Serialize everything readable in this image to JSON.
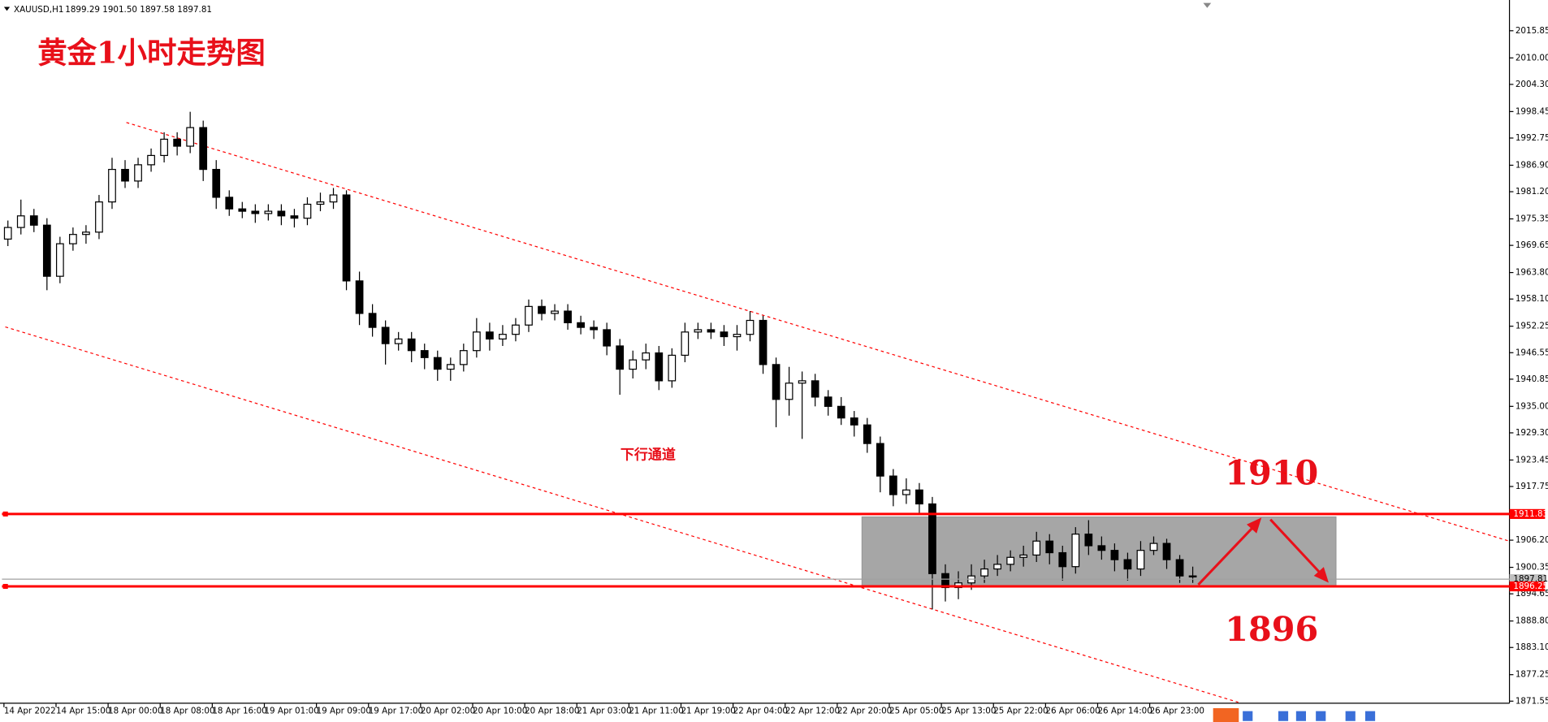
{
  "chart_data": {
    "type": "candlestick",
    "symbol": "XAUUSD,H1",
    "header_ohlc": "1899.29 1901.50 1897.58 1897.81",
    "title": "黄金1小时走势图",
    "annotation": "下行通道",
    "target_high": "1910",
    "target_low": "1896",
    "up_color": "#ffffff",
    "down_color": "#000000",
    "ylim": [
      1871.1,
      2021.4
    ],
    "yticks": [
      2015.85,
      {
        "value": 2010,
        "label": "2010.00"
      },
      {
        "value": 2004.3,
        "label": "2004.30"
      },
      1998.45,
      1992.75,
      {
        "value": 1986.9,
        "label": "1986.90"
      },
      {
        "value": 1981.2,
        "label": "1981.20"
      },
      1975.35,
      1969.65,
      {
        "value": 1963.8,
        "label": "1963.80"
      },
      {
        "value": 1958.1,
        "label": "1958.10"
      },
      1952.25,
      1946.55,
      1940.85,
      {
        "value": 1935,
        "label": "1935.00"
      },
      {
        "value": 1929.3,
        "label": "1929.30"
      },
      1923.45,
      1917.75,
      {
        "value": 1906.2,
        "label": "1906.20"
      },
      1900.35,
      1894.65,
      {
        "value": 1888.8,
        "label": "1888.80"
      },
      {
        "value": 1883.1,
        "label": "1883.10"
      },
      1877.25,
      1871.55
    ],
    "categories": [
      "14 Apr 2022",
      null,
      null,
      null,
      "14 Apr 15:00",
      null,
      null,
      null,
      "18 Apr 00:00",
      null,
      null,
      null,
      "18 Apr 08:00",
      null,
      null,
      null,
      "18 Apr 16:00",
      null,
      null,
      null,
      "19 Apr 01:00",
      null,
      null,
      null,
      "19 Apr 09:00",
      null,
      null,
      null,
      "19 Apr 17:00",
      null,
      null,
      null,
      "20 Apr 02:00",
      null,
      null,
      null,
      "20 Apr 10:00",
      null,
      null,
      null,
      "20 Apr 18:00",
      null,
      null,
      null,
      "21 Apr 03:00",
      null,
      null,
      null,
      "21 Apr 11:00",
      null,
      null,
      null,
      "21 Apr 19:00",
      null,
      null,
      null,
      "22 Apr 04:00",
      null,
      null,
      null,
      "22 Apr 12:00",
      null,
      null,
      null,
      "22 Apr 20:00",
      null,
      null,
      null,
      "25 Apr 05:00",
      null,
      null,
      null,
      "25 Apr 13:00",
      null,
      null,
      null,
      "25 Apr 22:00",
      null,
      null,
      null,
      "26 Apr 06:00",
      null,
      null,
      null,
      "26 Apr 14:00",
      null,
      null,
      null,
      "26 Apr 23:00",
      null,
      null,
      null
    ],
    "candles": [
      [
        1971,
        1975,
        1969.5,
        1973.5
      ],
      [
        1973.5,
        1979.5,
        1972,
        1976
      ],
      [
        1976,
        1977.5,
        1972.5,
        1974
      ],
      [
        1974,
        1975.5,
        1960,
        1963
      ],
      [
        1963,
        1971.5,
        1961.5,
        1970
      ],
      [
        1970,
        1973.5,
        1968.5,
        1972
      ],
      [
        1972,
        1974,
        1970,
        1972.5
      ],
      [
        1972.5,
        1980.5,
        1971,
        1979
      ],
      [
        1979,
        1988.5,
        1977.5,
        1986
      ],
      [
        1986,
        1988,
        1982,
        1983.5
      ],
      [
        1983.5,
        1988.5,
        1982,
        1987
      ],
      [
        1987,
        1990.5,
        1985.5,
        1989
      ],
      [
        1989,
        1994,
        1987.5,
        1992.5
      ],
      [
        1992.5,
        1994,
        1989,
        1991
      ],
      [
        1991,
        1998.4,
        1989.5,
        1995
      ],
      [
        1995,
        1996.5,
        1983.5,
        1986
      ],
      [
        1986,
        1988,
        1977.5,
        1980
      ],
      [
        1980,
        1981.5,
        1976,
        1977.5
      ],
      [
        1977.5,
        1979,
        1975.5,
        1977
      ],
      [
        1977,
        1978.5,
        1974.5,
        1976.5
      ],
      [
        1976.5,
        1978.5,
        1975,
        1977
      ],
      [
        1977,
        1978.5,
        1974,
        1976
      ],
      [
        1976,
        1977.5,
        1973.5,
        1975.5
      ],
      [
        1975.5,
        1980,
        1974,
        1978.5
      ],
      [
        1978.5,
        1981,
        1977,
        1979
      ],
      [
        1979,
        1982,
        1977.5,
        1980.5
      ],
      [
        1980.5,
        1981.5,
        1960,
        1962
      ],
      [
        1962,
        1964,
        1952.5,
        1955
      ],
      [
        1955,
        1957,
        1950,
        1952
      ],
      [
        1952,
        1953.5,
        1944,
        1948.5
      ],
      [
        1948.5,
        1951,
        1947,
        1949.5
      ],
      [
        1949.5,
        1951,
        1944.5,
        1947
      ],
      [
        1947,
        1948.5,
        1943,
        1945.5
      ],
      [
        1945.5,
        1947,
        1940.5,
        1943
      ],
      [
        1943,
        1945.5,
        1940.5,
        1944
      ],
      [
        1944,
        1948.5,
        1942.5,
        1947
      ],
      [
        1947,
        1954,
        1945.5,
        1951
      ],
      [
        1951,
        1953,
        1947,
        1949.5
      ],
      [
        1949.5,
        1952.5,
        1948,
        1950.5
      ],
      [
        1950.5,
        1954,
        1949,
        1952.5
      ],
      [
        1952.5,
        1958,
        1951,
        1956.5
      ],
      [
        1956.5,
        1958,
        1953.5,
        1955
      ],
      [
        1955,
        1957,
        1953.5,
        1955.5
      ],
      [
        1955.5,
        1957,
        1951.5,
        1953
      ],
      [
        1953,
        1954.5,
        1950.5,
        1952
      ],
      [
        1952,
        1953.5,
        1949.5,
        1951.5
      ],
      [
        1951.5,
        1953,
        1946,
        1948
      ],
      [
        1948,
        1949.5,
        1937.5,
        1943
      ],
      [
        1943,
        1947,
        1941,
        1945
      ],
      [
        1945,
        1948.5,
        1943,
        1946.5
      ],
      [
        1946.5,
        1948,
        1938.5,
        1940.5
      ],
      [
        1940.5,
        1947.5,
        1939,
        1946
      ],
      [
        1946,
        1953,
        1944.5,
        1951
      ],
      [
        1951,
        1953,
        1949.5,
        1951.5
      ],
      [
        1951.5,
        1953,
        1949.5,
        1951
      ],
      [
        1951,
        1952.5,
        1948,
        1950
      ],
      [
        1950,
        1952.5,
        1947,
        1950.5
      ],
      [
        1950.5,
        1955.5,
        1949,
        1953.5
      ],
      [
        1953.5,
        1954.5,
        1942,
        1944
      ],
      [
        1944,
        1945.5,
        1930.5,
        1936.5
      ],
      [
        1936.5,
        1943.5,
        1933,
        1940
      ],
      [
        1940,
        1942.5,
        1928,
        1940.5
      ],
      [
        1940.5,
        1942,
        1935,
        1937
      ],
      [
        1937,
        1938.5,
        1933,
        1935
      ],
      [
        1935,
        1937,
        1931,
        1932.5
      ],
      [
        1932.5,
        1934,
        1928.5,
        1931
      ],
      [
        1931,
        1932.5,
        1925,
        1927
      ],
      [
        1927,
        1928.5,
        1916.5,
        1920
      ],
      [
        1920,
        1921.5,
        1913.5,
        1916
      ],
      [
        1916,
        1919.5,
        1914,
        1917
      ],
      [
        1917,
        1918.5,
        1912,
        1914
      ],
      [
        1914,
        1915.5,
        1891.3,
        1899
      ],
      [
        1899,
        1901,
        1893,
        1896
      ],
      [
        1896,
        1899.5,
        1893.5,
        1897
      ],
      [
        1897,
        1901,
        1895.5,
        1898.5
      ],
      [
        1898.5,
        1902,
        1897,
        1900
      ],
      [
        1900,
        1903,
        1898.5,
        1901
      ],
      [
        1901,
        1904,
        1899.5,
        1902.5
      ],
      [
        1902.5,
        1905,
        1900.5,
        1903
      ],
      [
        1903,
        1908,
        1901.5,
        1906
      ],
      [
        1906,
        1907.5,
        1901,
        1903.5
      ],
      [
        1903.5,
        1905,
        1897.5,
        1900.5
      ],
      [
        1900.5,
        1909,
        1899,
        1907.5
      ],
      [
        1907.5,
        1910.5,
        1903,
        1905
      ],
      [
        1905,
        1907,
        1902,
        1904
      ],
      [
        1904,
        1905.5,
        1899.5,
        1902
      ],
      [
        1902,
        1903.5,
        1897.5,
        1900
      ],
      [
        1900,
        1906,
        1898.5,
        1904
      ],
      [
        1904,
        1907,
        1903,
        1905.5
      ],
      [
        1905.5,
        1906.5,
        1900,
        1902
      ],
      [
        1902,
        1903,
        1897,
        1898.5
      ],
      [
        1898.5,
        1900.5,
        1897,
        1898.5
      ]
    ],
    "levels": [
      {
        "value": 1911.83,
        "color": "#ff0000"
      },
      {
        "value": 1896.25,
        "color": "#ff0000"
      }
    ],
    "current_price": 1897.81,
    "channels": [
      {
        "x": [
          9.1,
          115.3
        ],
        "y": [
          1996.1,
          1906.0
        ]
      },
      {
        "x": [
          -0.2,
          94.5
        ],
        "y": [
          1952.1,
          1871.3
        ]
      }
    ],
    "zone": {
      "x": [
        65.6,
        102.0
      ],
      "y": [
        1911.2,
        1896.25
      ]
    }
  }
}
